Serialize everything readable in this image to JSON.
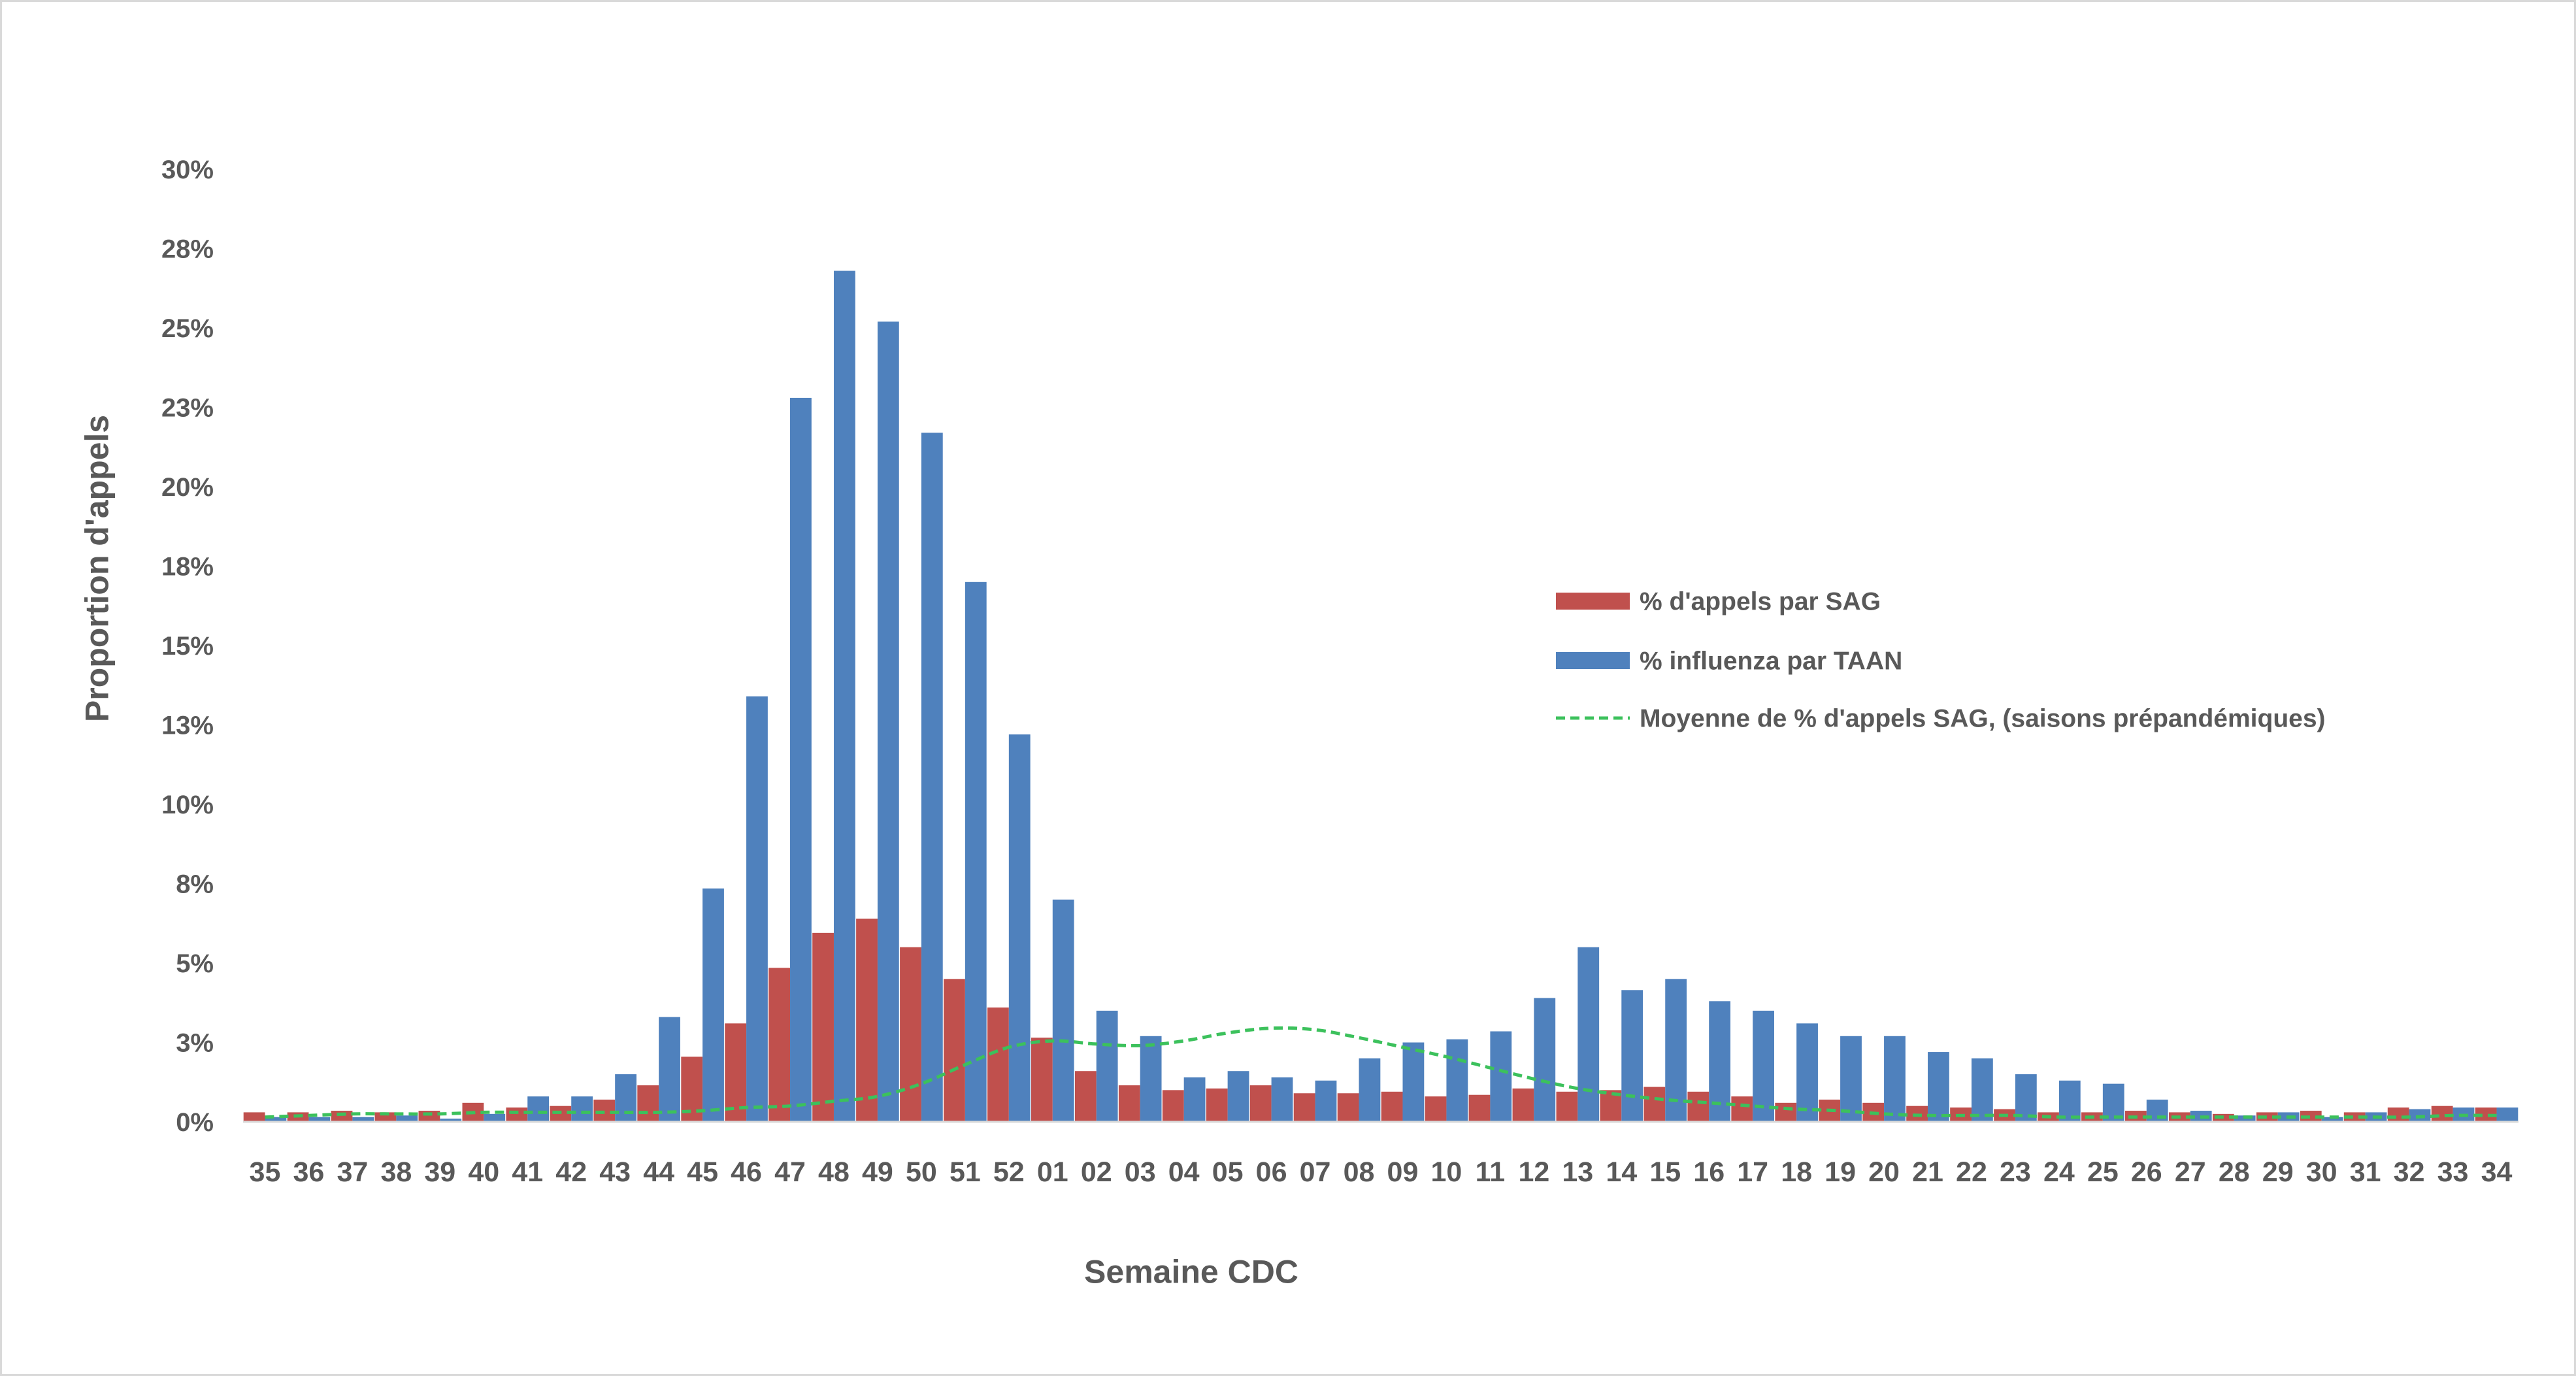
{
  "chart_data": {
    "type": "bar",
    "categories": [
      "35",
      "36",
      "37",
      "38",
      "39",
      "40",
      "41",
      "42",
      "43",
      "44",
      "45",
      "46",
      "47",
      "48",
      "49",
      "50",
      "51",
      "52",
      "01",
      "02",
      "03",
      "04",
      "05",
      "06",
      "07",
      "08",
      "09",
      "10",
      "11",
      "12",
      "13",
      "14",
      "15",
      "16",
      "17",
      "18",
      "19",
      "20",
      "21",
      "22",
      "23",
      "24",
      "25",
      "26",
      "27",
      "28",
      "29",
      "30",
      "31",
      "32",
      "33",
      "34"
    ],
    "xlabel": "Semaine CDC",
    "ylabel": "Proportion d'appels",
    "ylim": [
      0,
      30
    ],
    "y_tick_values": [
      0,
      2.5,
      5,
      7.5,
      10,
      12.5,
      15,
      17.5,
      20,
      22.5,
      25,
      27.5,
      30
    ],
    "y_tick_labels": [
      "0%",
      "3%",
      "5%",
      "8%",
      "10%",
      "13%",
      "15%",
      "18%",
      "20%",
      "23%",
      "25%",
      "28%",
      "30%"
    ],
    "grid": false,
    "legend": "center-right",
    "series": [
      {
        "name": "% d'appels par SAG",
        "type": "bar",
        "color": "#c0504d",
        "values": [
          0.3,
          0.3,
          0.35,
          0.3,
          0.35,
          0.6,
          0.45,
          0.5,
          0.7,
          1.15,
          2.05,
          3.1,
          4.85,
          5.95,
          6.4,
          5.5,
          4.5,
          3.6,
          2.65,
          1.6,
          1.15,
          1.0,
          1.05,
          1.15,
          0.9,
          0.9,
          0.95,
          0.8,
          0.85,
          1.05,
          0.95,
          1.0,
          1.1,
          0.95,
          0.8,
          0.6,
          0.7,
          0.6,
          0.5,
          0.45,
          0.4,
          0.3,
          0.3,
          0.35,
          0.3,
          0.25,
          0.3,
          0.35,
          0.3,
          0.45,
          0.5,
          0.45
        ]
      },
      {
        "name": "% influenza par TAAN",
        "type": "bar",
        "color": "#4f81bd",
        "values": [
          0.15,
          0.15,
          0.15,
          0.2,
          0.1,
          0.25,
          0.8,
          0.8,
          1.5,
          3.3,
          7.35,
          13.4,
          22.8,
          26.8,
          25.2,
          21.7,
          17.0,
          12.2,
          7.0,
          3.5,
          2.7,
          1.4,
          1.6,
          1.4,
          1.3,
          2.0,
          2.5,
          2.6,
          2.85,
          3.9,
          5.5,
          4.15,
          4.5,
          3.8,
          3.5,
          3.1,
          2.7,
          2.7,
          2.2,
          2.0,
          1.5,
          1.3,
          1.2,
          0.7,
          0.35,
          0.2,
          0.3,
          0.15,
          0.3,
          0.4,
          0.45,
          0.45
        ]
      },
      {
        "name": "Moyenne de % d'appels SAG, (saisons prépandémiques)",
        "type": "line",
        "line_style": "dashed",
        "color": "#3cc15c",
        "values": [
          0.15,
          0.2,
          0.25,
          0.25,
          0.25,
          0.3,
          0.3,
          0.3,
          0.3,
          0.3,
          0.35,
          0.45,
          0.5,
          0.65,
          0.8,
          1.2,
          1.8,
          2.35,
          2.55,
          2.45,
          2.4,
          2.55,
          2.8,
          2.95,
          2.9,
          2.65,
          2.35,
          2.05,
          1.7,
          1.35,
          1.05,
          0.85,
          0.7,
          0.6,
          0.5,
          0.4,
          0.35,
          0.25,
          0.2,
          0.2,
          0.2,
          0.15,
          0.15,
          0.15,
          0.15,
          0.15,
          0.15,
          0.15,
          0.15,
          0.15,
          0.2,
          0.2
        ]
      }
    ]
  }
}
